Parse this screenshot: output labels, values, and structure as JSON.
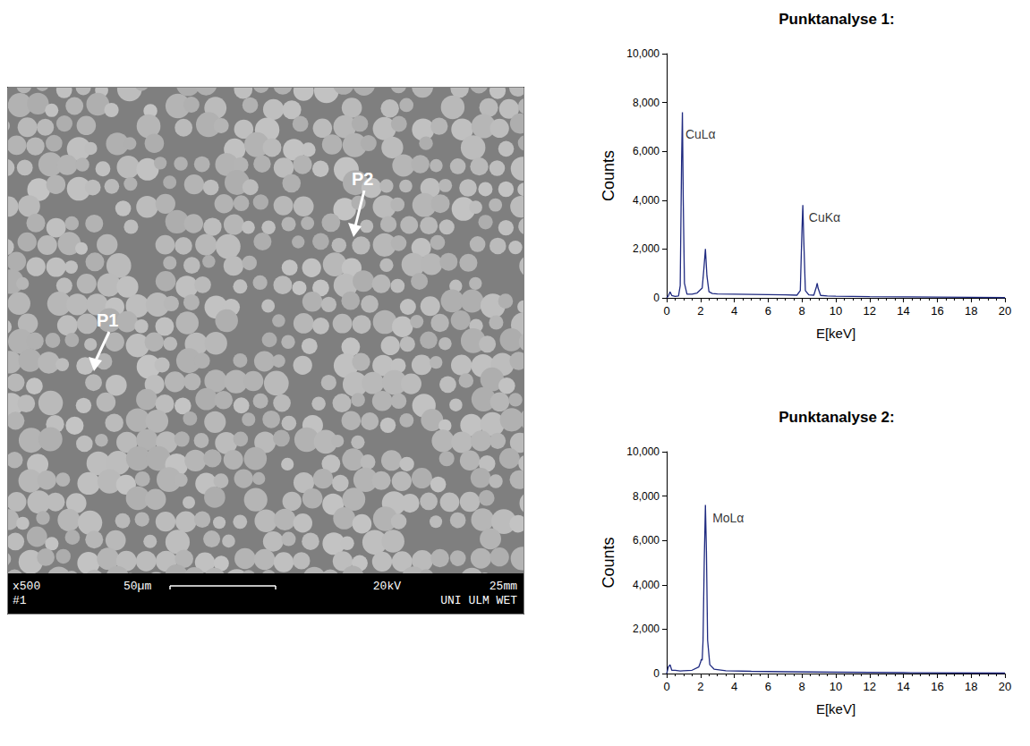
{
  "image": {
    "magnification": "x500",
    "number": "#1",
    "scale_bar": "50µm",
    "voltage": "20kV",
    "working_distance": "25mm",
    "lab": "UNI ULM WET",
    "points": [
      "P1",
      "P2"
    ]
  },
  "chart_data": [
    {
      "type": "line",
      "title": "Punktanalyse 1:",
      "x_label": "E[keV]",
      "y_label": "Counts",
      "color": "#1f2a80",
      "grid": false,
      "x": [
        0,
        0.1,
        0.2,
        0.3,
        0.5,
        0.7,
        0.8,
        0.88,
        0.93,
        0.98,
        1.05,
        1.2,
        1.5,
        1.8,
        2.1,
        2.2,
        2.29,
        2.38,
        2.5,
        2.7,
        3,
        4,
        5,
        6,
        7,
        7.7,
        7.9,
        8.0,
        8.05,
        8.1,
        8.2,
        8.4,
        8.7,
        8.85,
        8.9,
        8.95,
        9.1,
        9.5,
        10,
        11,
        12,
        14,
        16,
        18,
        20
      ],
      "values": [
        0,
        80,
        250,
        100,
        60,
        80,
        500,
        5500,
        7600,
        4000,
        600,
        150,
        150,
        200,
        400,
        1200,
        2000,
        900,
        250,
        180,
        160,
        150,
        140,
        130,
        120,
        110,
        300,
        2800,
        3800,
        2500,
        300,
        120,
        110,
        450,
        600,
        400,
        100,
        80,
        70,
        60,
        50,
        40,
        30,
        20,
        10
      ],
      "xlim": [
        0,
        20
      ],
      "xticks": [
        0,
        2,
        4,
        6,
        8,
        10,
        12,
        14,
        16,
        18,
        20
      ],
      "ylim": [
        0,
        10000
      ],
      "yticks": [
        0,
        2000,
        4000,
        6000,
        8000,
        10000
      ],
      "annotations": [
        {
          "text": "CuLα",
          "x": 1.0,
          "y": 6700
        },
        {
          "text": "CuKα",
          "x": 8.3,
          "y": 3300
        }
      ]
    },
    {
      "type": "line",
      "title": "Punktanalyse 2:",
      "x_label": "E[keV]",
      "y_label": "Counts",
      "color": "#1f2a80",
      "grid": false,
      "x": [
        0,
        0.1,
        0.2,
        0.3,
        0.5,
        0.8,
        1,
        1.5,
        1.9,
        2.0,
        2.05,
        2.1,
        2.15,
        2.22,
        2.29,
        2.35,
        2.42,
        2.55,
        2.8,
        3.5,
        5,
        7,
        10,
        14,
        20
      ],
      "values": [
        0,
        300,
        400,
        150,
        150,
        120,
        130,
        150,
        300,
        500,
        650,
        600,
        1500,
        5000,
        7600,
        5500,
        1500,
        400,
        200,
        130,
        100,
        80,
        60,
        40,
        20
      ],
      "xlim": [
        0,
        20
      ],
      "xticks": [
        0,
        2,
        4,
        6,
        8,
        10,
        12,
        14,
        16,
        18,
        20
      ],
      "ylim": [
        0,
        10000
      ],
      "yticks": [
        0,
        2000,
        4000,
        6000,
        8000,
        10000
      ],
      "annotations": [
        {
          "text": "MoLα",
          "x": 2.6,
          "y": 7000
        }
      ]
    }
  ]
}
